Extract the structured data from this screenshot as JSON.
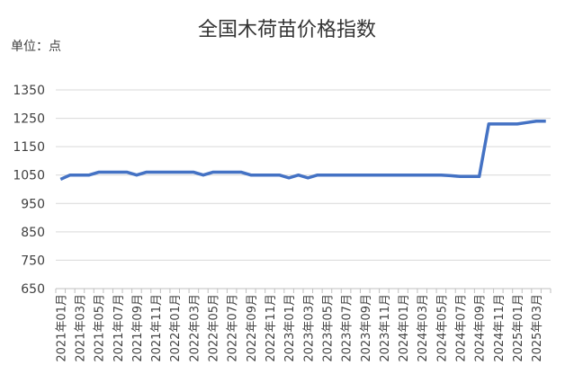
{
  "chart_data": {
    "type": "line",
    "title": "全国木荷苗价格指数",
    "unit_label": "单位：点",
    "categories": [
      "2021年01月",
      null,
      "2021年03月",
      null,
      "2021年05月",
      null,
      "2021年07月",
      null,
      "2021年09月",
      null,
      "2021年11月",
      null,
      "2022年01月",
      null,
      "2022年03月",
      null,
      "2022年05月",
      null,
      "2022年07月",
      null,
      "2022年09月",
      null,
      "2022年11月",
      null,
      "2023年01月",
      null,
      "2023年03月",
      null,
      "2023年05月",
      null,
      "2023年07月",
      null,
      "2023年09月",
      null,
      "2023年11月",
      null,
      "2024年01月",
      null,
      "2024年03月",
      null,
      "2024年05月",
      null,
      "2024年07月",
      null,
      "2024年09月",
      null,
      "2024年11月",
      null,
      "2025年01月",
      null,
      "2025年03月",
      null
    ],
    "values": [
      1035,
      1050,
      1050,
      1050,
      1060,
      1060,
      1060,
      1060,
      1050,
      1060,
      1060,
      1060,
      1060,
      1060,
      1060,
      1050,
      1060,
      1060,
      1060,
      1060,
      1050,
      1050,
      1050,
      1050,
      1040,
      1050,
      1040,
      1050,
      1050,
      1050,
      1050,
      1050,
      1050,
      1050,
      1050,
      1050,
      1050,
      1050,
      1050,
      1050,
      1050,
      1048,
      1045,
      1045,
      1045,
      1230,
      1230,
      1230,
      1230,
      1235,
      1240,
      1240
    ],
    "color": "#4472c4",
    "ylim": [
      650,
      1350
    ],
    "yticks": [
      650,
      750,
      850,
      950,
      1050,
      1150,
      1250,
      1350
    ],
    "grid": true
  }
}
